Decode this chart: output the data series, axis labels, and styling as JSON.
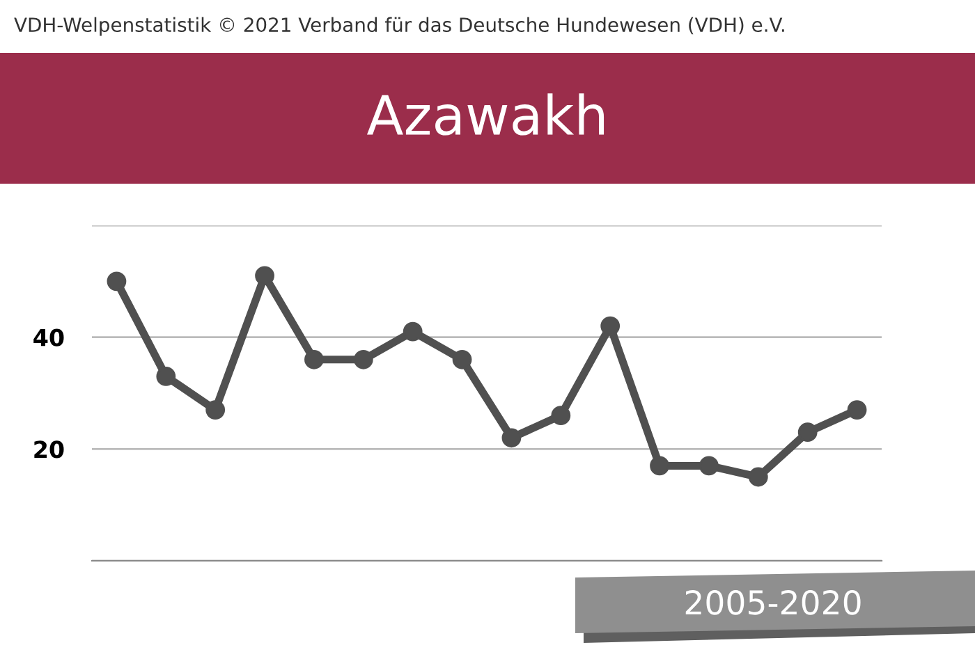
{
  "chart_data": {
    "type": "line",
    "title": "Azawakh",
    "categories": [
      null,
      null,
      null,
      null,
      null,
      null,
      null,
      null,
      null,
      null,
      null,
      null,
      null,
      null,
      null,
      null
    ],
    "series": [
      {
        "color": "#505050",
        "values": [
          50,
          33,
          27,
          51,
          36,
          36,
          41,
          36,
          22,
          26,
          42,
          17,
          17,
          15,
          23,
          27
        ]
      }
    ],
    "ylim": [
      0,
      60
    ],
    "yticks": [
      {
        "value": 0,
        "label": null
      },
      20,
      40,
      {
        "value": 60,
        "label": null
      }
    ],
    "grid": "y",
    "marker": "circle",
    "line_style": "solid",
    "legend": false,
    "tick_labels": "y",
    "annotations": [
      "VDH-Welpenstatistik © 2021 Verband für das Deutsche Hundewesen (VDH) e.V.",
      "2005-2020"
    ]
  }
}
